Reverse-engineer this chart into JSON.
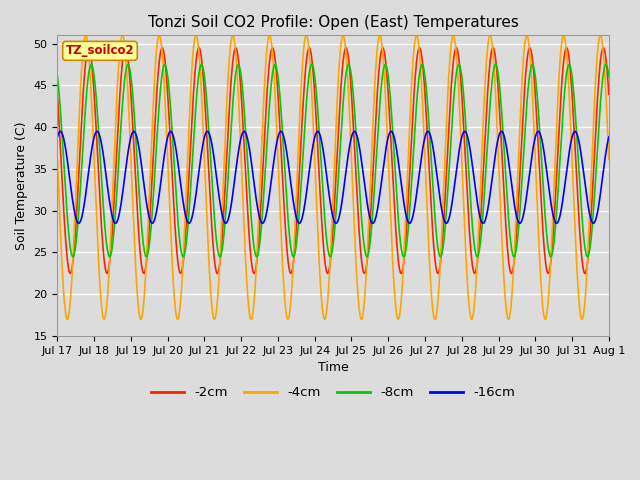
{
  "title": "Tonzi Soil CO2 Profile: Open (East) Temperatures",
  "ylabel": "Soil Temperature (C)",
  "xlabel": "Time",
  "legend_label": "TZ_soilco2",
  "series_labels": [
    "-2cm",
    "-4cm",
    "-8cm",
    "-16cm"
  ],
  "series_colors": [
    "#ff2200",
    "#ffa500",
    "#00cc00",
    "#0000ff"
  ],
  "ylim": [
    15,
    51
  ],
  "yticks": [
    15,
    20,
    25,
    30,
    35,
    40,
    45,
    50
  ],
  "x_tick_labels": [
    "Jul 17",
    "Jul 18",
    "Jul 19",
    "Jul 20",
    "Jul 21",
    "Jul 22",
    "Jul 23",
    "Jul 24",
    "Jul 25",
    "Jul 26",
    "Jul 27",
    "Jul 28",
    "Jul 29",
    "Jul 30",
    "Jul 31",
    "Aug 1"
  ],
  "background_color": "#dcdcdc",
  "plot_bg_color": "#dcdcdc",
  "grid_color": "#ffffff",
  "linewidth": 1.2
}
